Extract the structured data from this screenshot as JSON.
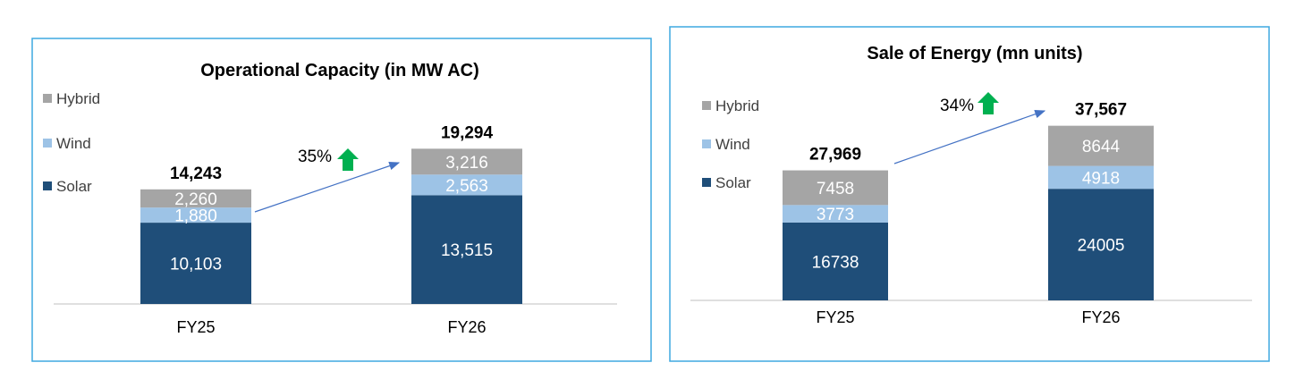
{
  "colors": {
    "solar": "#1f4e79",
    "wind": "#9dc3e6",
    "hybrid": "#a5a5a5",
    "growth_arrow": "#00b050",
    "trend_line": "#4472c4",
    "panel_border": "#3fa9e0"
  },
  "chart_data": [
    {
      "type": "bar",
      "stacked": true,
      "title": "Operational Capacity (in MW AC)",
      "categories": [
        "FY25",
        "FY26"
      ],
      "legend": [
        "Hybrid",
        "Wind",
        "Solar"
      ],
      "legend_position": "left",
      "series": [
        {
          "name": "Solar",
          "values": [
            10103,
            13515
          ],
          "labels": [
            "10,103",
            "13,515"
          ]
        },
        {
          "name": "Wind",
          "values": [
            1880,
            2563
          ],
          "labels": [
            "1,880",
            "2,563"
          ]
        },
        {
          "name": "Hybrid",
          "values": [
            2260,
            3216
          ],
          "labels": [
            "2,260",
            "3,216"
          ]
        }
      ],
      "totals": [
        14243,
        19294
      ],
      "total_labels": [
        "14,243",
        "19,294"
      ],
      "growth_label": "35%",
      "xlabel": "",
      "ylabel": ""
    },
    {
      "type": "bar",
      "stacked": true,
      "title": "Sale of Energy (mn units)",
      "categories": [
        "FY25",
        "FY26"
      ],
      "legend": [
        "Hybrid",
        "Wind",
        "Solar"
      ],
      "legend_position": "left",
      "series": [
        {
          "name": "Solar",
          "values": [
            16738,
            24005
          ],
          "labels": [
            "16738",
            "24005"
          ]
        },
        {
          "name": "Wind",
          "values": [
            3773,
            4918
          ],
          "labels": [
            "3773",
            "4918"
          ]
        },
        {
          "name": "Hybrid",
          "values": [
            7458,
            8644
          ],
          "labels": [
            "7458",
            "8644"
          ]
        }
      ],
      "totals": [
        27969,
        37567
      ],
      "total_labels": [
        "27,969",
        "37,567"
      ],
      "growth_label": "34%",
      "xlabel": "",
      "ylabel": ""
    }
  ]
}
